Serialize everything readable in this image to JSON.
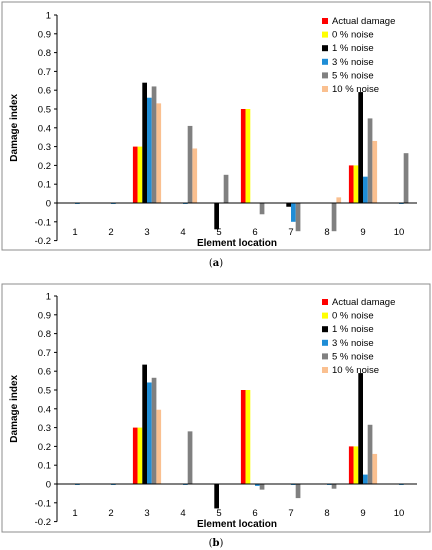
{
  "chart_data": [
    {
      "type": "bar",
      "caption_letter": "a",
      "ylabel": "Damage index",
      "xlabel": "Element location",
      "ylim": [
        -0.2,
        1.0
      ],
      "yticks": [
        -0.2,
        -0.1,
        0,
        0.1,
        0.2,
        0.3,
        0.4,
        0.5,
        0.6,
        0.7,
        0.8,
        0.9,
        1
      ],
      "grid": false,
      "legend_position": "top-right",
      "categories": [
        "1",
        "2",
        "3",
        "4",
        "5",
        "6",
        "7",
        "8",
        "9",
        "10"
      ],
      "series": [
        {
          "name": "Actual damage",
          "color": "#ff0000",
          "values": [
            0,
            0,
            0.3,
            0,
            0,
            0.5,
            0,
            0,
            0.2,
            0
          ]
        },
        {
          "name": "0 % noise",
          "color": "#ffff00",
          "values": [
            0,
            0,
            0.3,
            0,
            0,
            0.5,
            0,
            0,
            0.2,
            0
          ]
        },
        {
          "name": "1 % noise",
          "color": "#000000",
          "values": [
            0,
            0,
            0.64,
            0,
            -0.14,
            0,
            -0.02,
            0,
            0.59,
            0
          ]
        },
        {
          "name": "3 % noise",
          "color": "#1f8dd6",
          "values": [
            -0.005,
            -0.005,
            0.56,
            -0.005,
            0,
            0,
            -0.1,
            0,
            0.14,
            -0.005
          ]
        },
        {
          "name": "5 % noise",
          "color": "#808080",
          "values": [
            0,
            0,
            0.62,
            0.41,
            0.15,
            -0.06,
            -0.15,
            -0.15,
            0.45,
            0.265
          ]
        },
        {
          "name": "10 % noise",
          "color": "#fac090",
          "values": [
            0,
            0,
            0.53,
            0.29,
            0,
            0,
            0,
            0.03,
            0.33,
            0
          ]
        }
      ]
    },
    {
      "type": "bar",
      "caption_letter": "b",
      "ylabel": "Damage index",
      "xlabel": "Element location",
      "ylim": [
        -0.2,
        1.0
      ],
      "yticks": [
        -0.2,
        -0.1,
        0,
        0.1,
        0.2,
        0.3,
        0.4,
        0.5,
        0.6,
        0.7,
        0.8,
        0.9,
        1
      ],
      "grid": false,
      "legend_position": "top-right",
      "categories": [
        "1",
        "2",
        "3",
        "4",
        "5",
        "6",
        "7",
        "8",
        "9",
        "10"
      ],
      "series": [
        {
          "name": "Actual damage",
          "color": "#ff0000",
          "values": [
            0,
            0,
            0.3,
            0,
            0,
            0.5,
            0,
            0,
            0.2,
            0
          ]
        },
        {
          "name": "0 % noise",
          "color": "#ffff00",
          "values": [
            0,
            0,
            0.3,
            0,
            0,
            0.5,
            0,
            0,
            0.2,
            0
          ]
        },
        {
          "name": "1 % noise",
          "color": "#000000",
          "values": [
            0,
            0,
            0.635,
            0,
            -0.13,
            0,
            0,
            0,
            0.59,
            0
          ]
        },
        {
          "name": "3 % noise",
          "color": "#1f8dd6",
          "values": [
            -0.005,
            -0.005,
            0.54,
            -0.005,
            0,
            -0.01,
            -0.005,
            -0.005,
            0.05,
            -0.005
          ]
        },
        {
          "name": "5 % noise",
          "color": "#808080",
          "values": [
            0,
            0,
            0.565,
            0.28,
            0,
            -0.03,
            -0.075,
            -0.025,
            0.315,
            0
          ]
        },
        {
          "name": "10 % noise",
          "color": "#fac090",
          "values": [
            0,
            0,
            0.395,
            0,
            0,
            0,
            0,
            0,
            0.16,
            0
          ]
        }
      ]
    }
  ]
}
